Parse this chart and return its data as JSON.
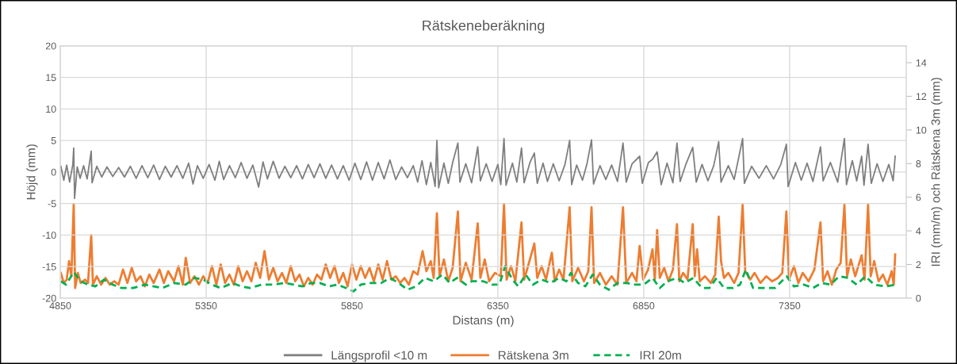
{
  "chart_data": {
    "type": "line",
    "title": "Rätskeneberäkning",
    "xlabel": "Distans (m)",
    "ylabel": "Höjd (mm)",
    "y2label": "IRI (mm/m) och Rätskena 3m (mm)",
    "xlim": [
      4850,
      7750
    ],
    "xticks": [
      4850,
      5350,
      5850,
      6350,
      6850,
      7350
    ],
    "ylim": [
      -20,
      20
    ],
    "yticks": [
      -20,
      -15,
      -10,
      -5,
      0,
      5,
      10,
      15,
      20
    ],
    "y2lim": [
      0,
      15
    ],
    "y2ticks": [
      0,
      2,
      4,
      6,
      8,
      10,
      12,
      14
    ],
    "grid": true,
    "legend": "bottom",
    "marker": "none",
    "series": [
      {
        "name": "Längsprofil <10 m",
        "color": "#7f7f7f",
        "line_style": "solid",
        "x": [
          4852,
          4862,
          4872,
          4882,
          4893,
          4896,
          4899,
          4908,
          4918,
          4930,
          4942,
          4956,
          4959,
          4975,
          4992,
          5010,
          5030,
          5050,
          5070,
          5090,
          5110,
          5130,
          5150,
          5170,
          5190,
          5210,
          5230,
          5250,
          5270,
          5290,
          5305,
          5320,
          5340,
          5360,
          5380,
          5395,
          5410,
          5430,
          5450,
          5470,
          5490,
          5510,
          5530,
          5545,
          5560,
          5580,
          5600,
          5620,
          5640,
          5660,
          5680,
          5700,
          5720,
          5740,
          5760,
          5780,
          5800,
          5820,
          5840,
          5860,
          5880,
          5900,
          5920,
          5940,
          5960,
          5980,
          6000,
          6020,
          6040,
          6060,
          6075,
          6090,
          6105,
          6120,
          6135,
          6141,
          6147,
          6165,
          6180,
          6195,
          6213,
          6220,
          6240,
          6260,
          6281,
          6290,
          6310,
          6330,
          6350,
          6360,
          6371,
          6378,
          6400,
          6415,
          6431,
          6440,
          6460,
          6475,
          6485,
          6505,
          6520,
          6540,
          6560,
          6580,
          6596,
          6603,
          6620,
          6640,
          6655,
          6671,
          6678,
          6700,
          6720,
          6740,
          6760,
          6779,
          6790,
          6810,
          6836,
          6845,
          6866,
          6880,
          6896,
          6910,
          6930,
          6950,
          6964,
          6975,
          6995,
          7018,
          7030,
          7050,
          7070,
          7090,
          7107,
          7115,
          7140,
          7160,
          7189,
          7195,
          7220,
          7245,
          7270,
          7295,
          7320,
          7339,
          7345,
          7370,
          7390,
          7410,
          7430,
          7456,
          7465,
          7490,
          7515,
          7538,
          7545,
          7565,
          7580,
          7597,
          7605,
          7619,
          7630,
          7650,
          7670,
          7690,
          7705,
          7712
        ],
        "values": [
          0.9,
          -1.3,
          1.1,
          -1.6,
          1.2,
          3.8,
          -4.2,
          0.8,
          -1.0,
          1.0,
          -1.1,
          3.3,
          -1.7,
          0.9,
          -0.8,
          0.8,
          -0.7,
          0.7,
          -0.8,
          0.9,
          -1.0,
          1.0,
          -0.9,
          1.1,
          -1.2,
          0.9,
          -0.8,
          1.0,
          -1.0,
          1.4,
          -1.9,
          1.0,
          -1.0,
          1.2,
          -1.3,
          1.7,
          -1.2,
          1.0,
          -0.9,
          1.5,
          -1.0,
          1.1,
          -2.4,
          1.6,
          -1.1,
          1.7,
          -1.0,
          0.9,
          -0.9,
          1.0,
          -1.1,
          1.2,
          -0.9,
          1.3,
          -1.0,
          1.1,
          -1.1,
          1.0,
          -1.3,
          1.4,
          -1.2,
          1.6,
          -1.3,
          1.5,
          -1.1,
          1.9,
          -1.2,
          0.8,
          -0.9,
          1.0,
          -1.6,
          1.8,
          -2.0,
          1.5,
          -2.3,
          5.0,
          -2.5,
          1.4,
          -1.8,
          1.5,
          4.6,
          -1.6,
          1.3,
          -1.7,
          4.0,
          -1.4,
          1.3,
          -1.5,
          1.2,
          -2.0,
          5.3,
          -2.1,
          1.4,
          -1.6,
          3.8,
          -1.7,
          1.5,
          3.0,
          -1.8,
          1.4,
          -1.5,
          1.3,
          -1.4,
          1.2,
          5.0,
          -2.0,
          1.1,
          -1.3,
          1.2,
          5.1,
          -1.9,
          1.0,
          -1.2,
          1.1,
          -1.5,
          4.6,
          -1.6,
          1.3,
          2.5,
          -1.8,
          1.5,
          2.0,
          3.2,
          -2.0,
          1.4,
          -1.7,
          4.6,
          -1.5,
          1.3,
          3.9,
          -1.6,
          1.2,
          -1.4,
          1.0,
          4.8,
          -1.6,
          1.0,
          -1.2,
          5.3,
          -1.8,
          0.9,
          -1.0,
          1.0,
          -1.1,
          1.2,
          4.4,
          -2.3,
          1.5,
          -1.3,
          1.4,
          -1.5,
          4.0,
          -1.4,
          1.5,
          -1.6,
          5.3,
          -2.0,
          1.8,
          -1.4,
          2.5,
          -2.1,
          4.4,
          -1.8,
          1.3,
          -1.5,
          1.2,
          -1.4,
          2.5
        ]
      },
      {
        "name": "Rätskena 3m",
        "color": "#ed7d31",
        "line_style": "solid",
        "axis": "y2",
        "x": [
          4852,
          4862,
          4872,
          4880,
          4888,
          4896,
          4901,
          4910,
          4920,
          4935,
          4945,
          4956,
          4962,
          4975,
          4990,
          5005,
          5020,
          5035,
          5050,
          5065,
          5080,
          5095,
          5110,
          5125,
          5140,
          5155,
          5170,
          5190,
          5205,
          5220,
          5240,
          5255,
          5270,
          5280,
          5295,
          5310,
          5325,
          5340,
          5355,
          5370,
          5385,
          5400,
          5415,
          5430,
          5445,
          5460,
          5475,
          5490,
          5505,
          5520,
          5535,
          5550,
          5565,
          5580,
          5595,
          5610,
          5625,
          5640,
          5655,
          5670,
          5685,
          5700,
          5715,
          5730,
          5745,
          5760,
          5775,
          5790,
          5805,
          5820,
          5835,
          5850,
          5865,
          5880,
          5895,
          5910,
          5925,
          5940,
          5955,
          5970,
          5985,
          6000,
          6015,
          6030,
          6045,
          6060,
          6075,
          6092,
          6105,
          6120,
          6130,
          6141,
          6150,
          6165,
          6180,
          6195,
          6213,
          6222,
          6240,
          6260,
          6281,
          6290,
          6305,
          6320,
          6340,
          6360,
          6371,
          6380,
          6395,
          6410,
          6431,
          6440,
          6455,
          6475,
          6485,
          6500,
          6515,
          6535,
          6545,
          6560,
          6575,
          6596,
          6605,
          6625,
          6645,
          6660,
          6671,
          6680,
          6700,
          6720,
          6740,
          6760,
          6779,
          6790,
          6810,
          6825,
          6836,
          6848,
          6865,
          6880,
          6888,
          6896,
          6905,
          6920,
          6935,
          6950,
          6964,
          6972,
          6985,
          7000,
          7018,
          7025,
          7033,
          7042,
          7060,
          7080,
          7095,
          7107,
          7115,
          7125,
          7140,
          7160,
          7175,
          7189,
          7198,
          7215,
          7230,
          7250,
          7270,
          7290,
          7310,
          7325,
          7339,
          7348,
          7365,
          7380,
          7395,
          7415,
          7435,
          7456,
          7465,
          7480,
          7495,
          7510,
          7525,
          7538,
          7547,
          7560,
          7575,
          7597,
          7607,
          7619,
          7628,
          7640,
          7655,
          7670,
          7685,
          7700,
          7707,
          7712
        ],
        "values": [
          1.5,
          0.9,
          1.1,
          2.2,
          1.3,
          5.6,
          0.6,
          1.5,
          0.9,
          1.1,
          0.9,
          3.75,
          0.8,
          1.3,
          0.8,
          1.2,
          0.8,
          1.0,
          0.8,
          1.7,
          0.9,
          1.8,
          1.0,
          1.3,
          0.7,
          1.4,
          0.9,
          1.7,
          0.9,
          1.6,
          1.0,
          1.9,
          0.8,
          2.4,
          0.9,
          1.3,
          0.8,
          1.3,
          0.9,
          1.9,
          0.8,
          2.0,
          0.9,
          1.4,
          0.8,
          1.9,
          1.0,
          1.6,
          1.0,
          2.1,
          1.2,
          2.8,
          1.1,
          1.8,
          1.0,
          1.5,
          0.9,
          1.9,
          1.0,
          1.4,
          0.7,
          1.2,
          0.8,
          1.4,
          1.1,
          2.0,
          1.2,
          1.9,
          0.9,
          1.5,
          0.7,
          2.0,
          1.1,
          1.9,
          1.2,
          1.8,
          1.0,
          2.0,
          1.1,
          2.2,
          1.1,
          1.3,
          0.9,
          1.2,
          0.8,
          1.6,
          1.4,
          2.8,
          1.6,
          2.2,
          1.2,
          5.05,
          1.3,
          2.3,
          1.0,
          1.8,
          5.15,
          1.0,
          2.1,
          1.1,
          4.45,
          1.2,
          2.3,
          1.0,
          1.5,
          1.3,
          5.6,
          1.1,
          1.9,
          1.0,
          4.5,
          1.1,
          2.0,
          3.25,
          1.2,
          1.9,
          1.1,
          2.7,
          1.0,
          1.7,
          1.1,
          5.4,
          1.0,
          1.8,
          1.0,
          1.6,
          5.4,
          0.9,
          1.5,
          0.8,
          1.3,
          0.8,
          5.4,
          0.9,
          1.5,
          1.0,
          3.1,
          1.1,
          1.7,
          2.9,
          1.1,
          4.05,
          1.2,
          1.8,
          1.0,
          1.7,
          4.4,
          1.0,
          1.5,
          1.1,
          4.4,
          1.3,
          2.9,
          1.0,
          1.3,
          0.9,
          1.4,
          4.85,
          2.2,
          1.2,
          1.5,
          0.9,
          1.5,
          5.55,
          1.6,
          1.1,
          1.5,
          0.9,
          1.3,
          1.0,
          1.2,
          1.5,
          5.15,
          1.1,
          1.9,
          0.9,
          1.5,
          1.0,
          1.7,
          4.5,
          1.0,
          1.6,
          0.8,
          1.7,
          2.1,
          5.55,
          1.3,
          2.3,
          1.3,
          2.55,
          1.1,
          5.55,
          1.3,
          2.2,
          1.0,
          1.4,
          0.8,
          1.6,
          0.8,
          2.6
        ]
      },
      {
        "name": "IRI 20m",
        "color": "#00b050",
        "line_style": "dashed",
        "axis": "y2",
        "x": [
          4852,
          4870,
          4896,
          4920,
          4945,
          4970,
          5000,
          5030,
          5060,
          5100,
          5140,
          5170,
          5200,
          5240,
          5280,
          5310,
          5340,
          5370,
          5400,
          5440,
          5470,
          5500,
          5540,
          5580,
          5620,
          5650,
          5680,
          5710,
          5740,
          5770,
          5800,
          5830,
          5855,
          5880,
          5910,
          5950,
          5980,
          6010,
          6040,
          6070,
          6100,
          6130,
          6160,
          6185,
          6210,
          6240,
          6260,
          6300,
          6330,
          6355,
          6375,
          6400,
          6420,
          6445,
          6470,
          6500,
          6530,
          6560,
          6585,
          6600,
          6625,
          6650,
          6675,
          6700,
          6730,
          6760,
          6790,
          6820,
          6850,
          6880,
          6905,
          6930,
          6965,
          6990,
          7020,
          7050,
          7075,
          7100,
          7125,
          7155,
          7180,
          7200,
          7225,
          7260,
          7300,
          7340,
          7365,
          7400,
          7430,
          7460,
          7490,
          7520,
          7550,
          7580,
          7610,
          7640,
          7680,
          7712
        ],
        "values": [
          1.0,
          0.8,
          1.55,
          1.0,
          0.8,
          0.7,
          1.1,
          0.8,
          0.6,
          0.6,
          0.8,
          0.7,
          0.6,
          0.9,
          0.8,
          1.2,
          1.1,
          0.8,
          0.6,
          0.9,
          0.7,
          0.6,
          0.8,
          0.8,
          0.9,
          0.8,
          0.7,
          0.9,
          0.9,
          0.7,
          0.8,
          0.6,
          0.4,
          0.8,
          0.9,
          0.9,
          1.2,
          0.9,
          0.5,
          0.7,
          1.2,
          1.0,
          1.4,
          0.9,
          1.2,
          0.8,
          1.0,
          1.0,
          0.8,
          0.8,
          1.9,
          1.1,
          0.7,
          1.4,
          0.8,
          1.1,
          0.9,
          1.2,
          1.0,
          1.5,
          0.9,
          0.7,
          1.4,
          0.8,
          0.5,
          0.9,
          0.9,
          0.8,
          0.8,
          1.2,
          0.6,
          1.0,
          1.2,
          0.9,
          1.2,
          0.6,
          0.6,
          1.2,
          0.6,
          0.6,
          0.8,
          1.7,
          0.6,
          0.6,
          0.6,
          1.3,
          0.7,
          0.8,
          0.6,
          0.9,
          0.8,
          1.3,
          1.2,
          0.8,
          1.3,
          0.8,
          0.7,
          0.8
        ]
      }
    ]
  }
}
